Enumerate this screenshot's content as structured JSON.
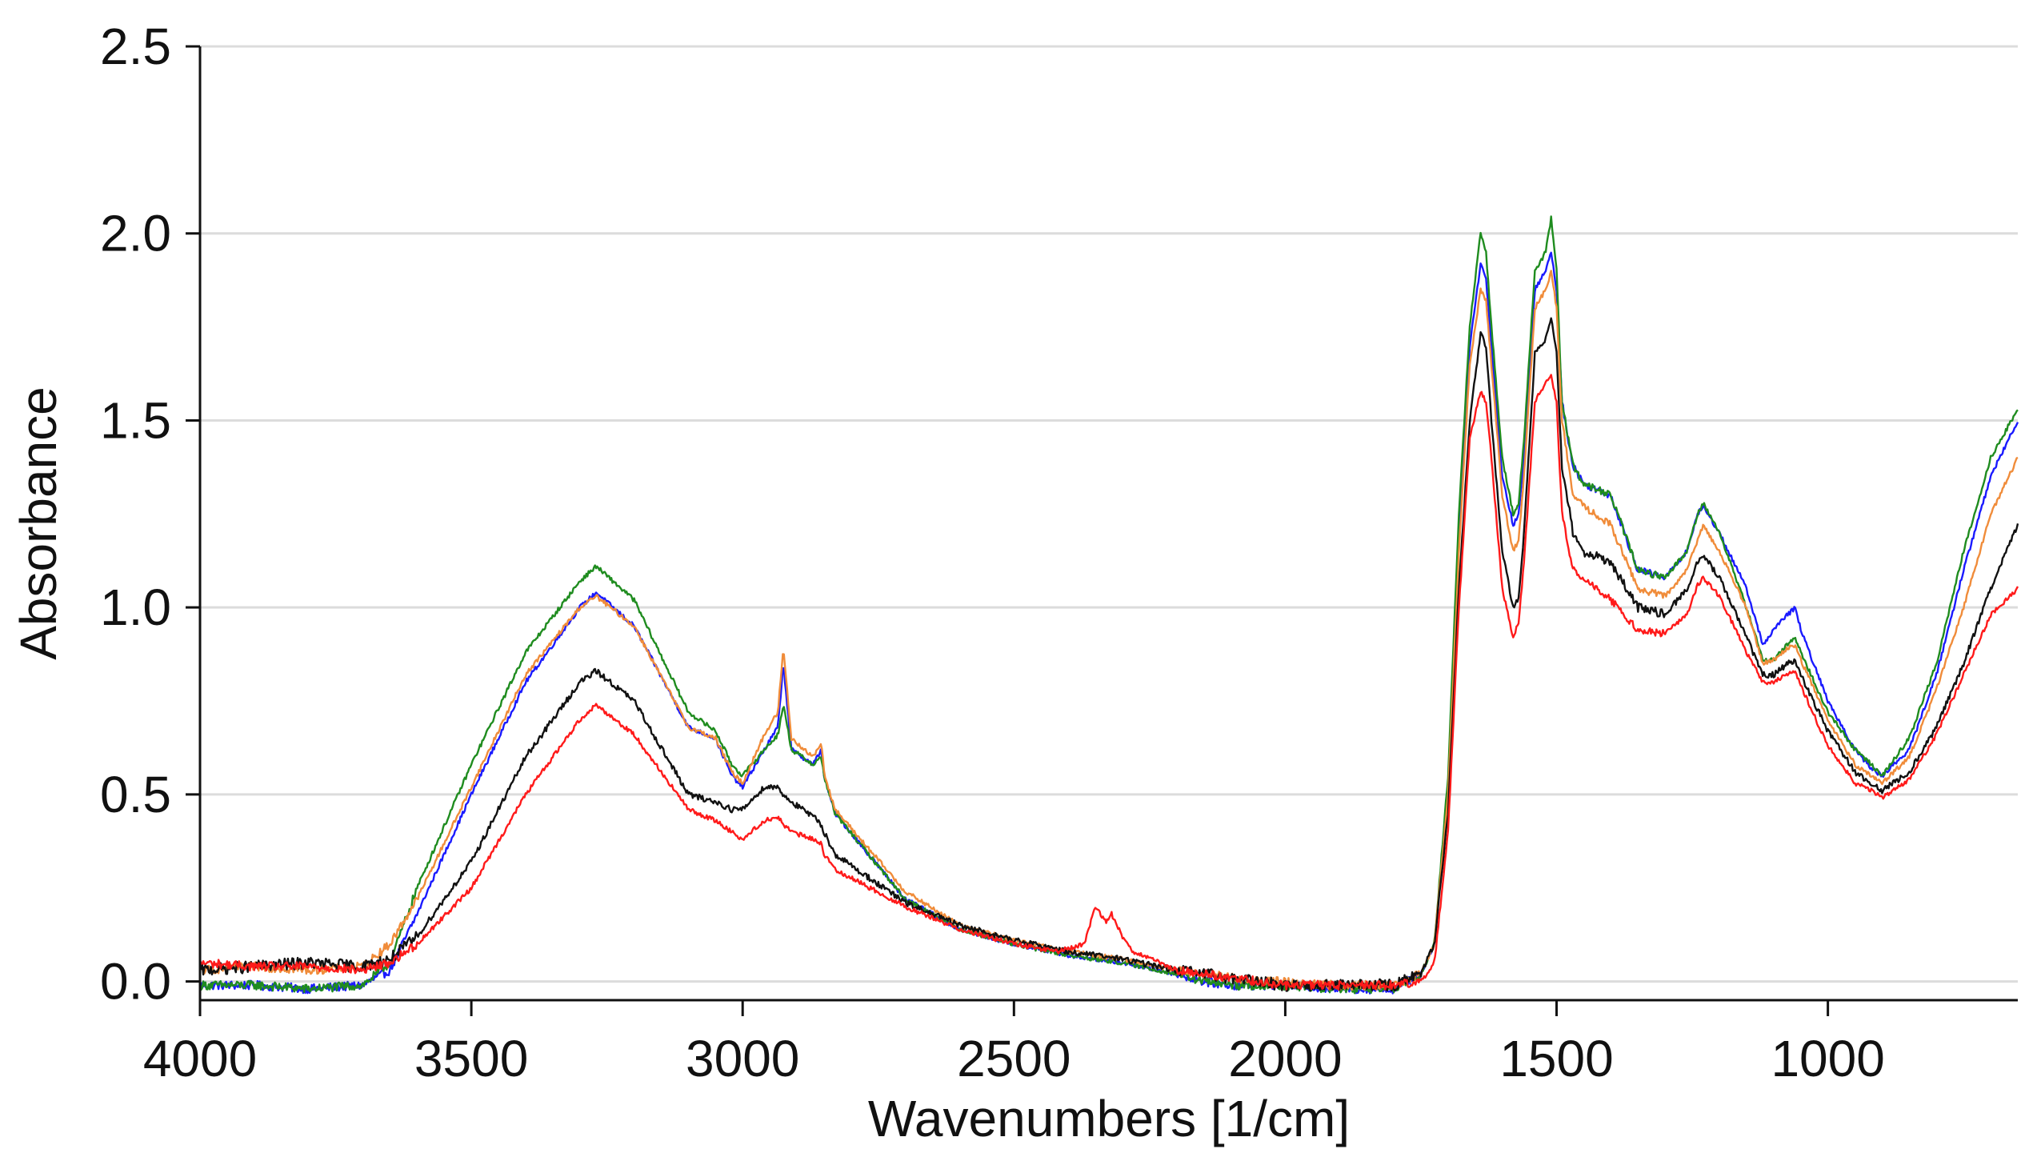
{
  "chart_data": {
    "type": "line",
    "title": "",
    "xlabel": "Wavenumbers [1/cm]",
    "ylabel": "Absorbance",
    "xlim": [
      4000,
      650
    ],
    "ylim": [
      -0.05,
      2.5
    ],
    "x_reversed": true,
    "grid": {
      "horizontal": true,
      "vertical": false
    },
    "legend": "none",
    "x_ticks": [
      {
        "value": 4000,
        "label": "4000"
      },
      {
        "value": 3500,
        "label": "3500"
      },
      {
        "value": 3000,
        "label": "3000"
      },
      {
        "value": 2500,
        "label": "2500"
      },
      {
        "value": 2000,
        "label": "2000"
      },
      {
        "value": 1500,
        "label": "1500"
      },
      {
        "value": 1000,
        "label": "1000"
      }
    ],
    "y_ticks": [
      {
        "value": 0.0,
        "label": "0.0"
      },
      {
        "value": 0.5,
        "label": "0.5"
      },
      {
        "value": 1.0,
        "label": "1.0"
      },
      {
        "value": 1.5,
        "label": "1.5"
      },
      {
        "value": 2.0,
        "label": "2.0"
      },
      {
        "value": 2.5,
        "label": "2.5"
      }
    ],
    "series": [
      {
        "color": "#1a1aff",
        "noise": 0.012,
        "x": [
          4000,
          3900,
          3800,
          3700,
          3650,
          3600,
          3500,
          3400,
          3300,
          3270,
          3200,
          3100,
          3050,
          3020,
          3000,
          2960,
          2935,
          2925,
          2910,
          2870,
          2855,
          2850,
          2830,
          2700,
          2600,
          2500,
          2400,
          2300,
          2200,
          2150,
          2100,
          2050,
          2000,
          1900,
          1800,
          1750,
          1725,
          1700,
          1680,
          1660,
          1640,
          1630,
          1620,
          1600,
          1580,
          1570,
          1560,
          1540,
          1520,
          1510,
          1500,
          1490,
          1470,
          1450,
          1400,
          1350,
          1300,
          1260,
          1240,
          1230,
          1200,
          1150,
          1120,
          1100,
          1075,
          1060,
          1050,
          1000,
          950,
          920,
          900,
          850,
          800,
          750,
          700,
          650
        ],
        "y": [
          -0.01,
          -0.01,
          -0.02,
          -0.01,
          0.03,
          0.18,
          0.5,
          0.8,
          1.0,
          1.04,
          0.95,
          0.68,
          0.65,
          0.55,
          0.52,
          0.62,
          0.68,
          0.85,
          0.62,
          0.58,
          0.62,
          0.55,
          0.45,
          0.22,
          0.14,
          0.1,
          0.07,
          0.05,
          0.02,
          0.0,
          -0.01,
          -0.01,
          -0.01,
          -0.02,
          -0.02,
          0.02,
          0.1,
          0.5,
          1.2,
          1.7,
          1.92,
          1.88,
          1.7,
          1.35,
          1.22,
          1.25,
          1.4,
          1.85,
          1.9,
          1.95,
          1.85,
          1.55,
          1.38,
          1.33,
          1.3,
          1.1,
          1.08,
          1.15,
          1.25,
          1.27,
          1.2,
          1.05,
          0.9,
          0.94,
          0.98,
          1.0,
          0.94,
          0.75,
          0.62,
          0.57,
          0.55,
          0.62,
          0.82,
          1.1,
          1.35,
          1.5
        ]
      },
      {
        "color": "#1f8c1f",
        "noise": 0.012,
        "x": [
          4000,
          3900,
          3800,
          3700,
          3650,
          3600,
          3500,
          3400,
          3300,
          3270,
          3200,
          3100,
          3050,
          3020,
          3000,
          2960,
          2935,
          2925,
          2910,
          2870,
          2855,
          2850,
          2830,
          2700,
          2600,
          2500,
          2400,
          2300,
          2200,
          2150,
          2100,
          2050,
          2000,
          1900,
          1800,
          1750,
          1725,
          1700,
          1680,
          1660,
          1640,
          1630,
          1620,
          1600,
          1580,
          1570,
          1560,
          1540,
          1520,
          1510,
          1500,
          1490,
          1470,
          1450,
          1400,
          1350,
          1300,
          1260,
          1240,
          1230,
          1200,
          1150,
          1120,
          1100,
          1075,
          1060,
          1050,
          1000,
          950,
          920,
          900,
          850,
          800,
          750,
          700,
          650
        ],
        "y": [
          -0.01,
          -0.01,
          -0.02,
          -0.01,
          0.05,
          0.25,
          0.58,
          0.88,
          1.07,
          1.11,
          1.02,
          0.72,
          0.67,
          0.58,
          0.55,
          0.62,
          0.66,
          0.74,
          0.62,
          0.58,
          0.6,
          0.55,
          0.45,
          0.22,
          0.14,
          0.1,
          0.07,
          0.05,
          0.02,
          0.0,
          -0.01,
          -0.01,
          -0.01,
          -0.02,
          -0.02,
          0.02,
          0.1,
          0.55,
          1.25,
          1.75,
          2.0,
          1.95,
          1.75,
          1.4,
          1.25,
          1.28,
          1.45,
          1.9,
          1.95,
          2.04,
          1.9,
          1.55,
          1.38,
          1.33,
          1.3,
          1.1,
          1.08,
          1.15,
          1.25,
          1.28,
          1.2,
          1.0,
          0.86,
          0.86,
          0.9,
          0.92,
          0.88,
          0.72,
          0.62,
          0.58,
          0.55,
          0.65,
          0.85,
          1.15,
          1.4,
          1.53
        ]
      },
      {
        "color": "#f08c3a",
        "noise": 0.012,
        "x": [
          4000,
          3900,
          3800,
          3700,
          3650,
          3600,
          3500,
          3400,
          3300,
          3270,
          3200,
          3100,
          3050,
          3020,
          3000,
          2960,
          2935,
          2925,
          2910,
          2870,
          2855,
          2850,
          2830,
          2700,
          2600,
          2500,
          2400,
          2300,
          2200,
          2150,
          2100,
          2050,
          2000,
          1900,
          1800,
          1750,
          1725,
          1700,
          1680,
          1660,
          1640,
          1630,
          1620,
          1600,
          1580,
          1570,
          1560,
          1540,
          1520,
          1510,
          1500,
          1490,
          1470,
          1450,
          1400,
          1350,
          1300,
          1260,
          1240,
          1230,
          1200,
          1150,
          1120,
          1100,
          1075,
          1060,
          1050,
          1000,
          950,
          920,
          900,
          850,
          800,
          750,
          700,
          650
        ],
        "y": [
          0.03,
          0.04,
          0.03,
          0.04,
          0.1,
          0.22,
          0.52,
          0.82,
          1.0,
          1.03,
          0.95,
          0.68,
          0.65,
          0.56,
          0.53,
          0.66,
          0.72,
          0.89,
          0.65,
          0.6,
          0.64,
          0.56,
          0.46,
          0.24,
          0.15,
          0.11,
          0.08,
          0.06,
          0.03,
          0.02,
          0.01,
          0.0,
          0.0,
          -0.01,
          -0.01,
          0.02,
          0.1,
          0.5,
          1.15,
          1.65,
          1.85,
          1.82,
          1.65,
          1.3,
          1.15,
          1.18,
          1.35,
          1.8,
          1.85,
          1.9,
          1.8,
          1.5,
          1.3,
          1.27,
          1.22,
          1.05,
          1.03,
          1.1,
          1.18,
          1.22,
          1.15,
          1.0,
          0.85,
          0.86,
          0.89,
          0.9,
          0.86,
          0.7,
          0.58,
          0.55,
          0.53,
          0.6,
          0.78,
          1.0,
          1.25,
          1.4
        ]
      },
      {
        "color": "#111111",
        "noise": 0.016,
        "x": [
          4000,
          3900,
          3800,
          3700,
          3650,
          3600,
          3500,
          3400,
          3300,
          3270,
          3200,
          3100,
          3050,
          3020,
          3000,
          2960,
          2935,
          2925,
          2910,
          2870,
          2855,
          2850,
          2830,
          2700,
          2600,
          2500,
          2400,
          2300,
          2200,
          2150,
          2100,
          2050,
          2000,
          1900,
          1800,
          1750,
          1725,
          1700,
          1680,
          1660,
          1640,
          1630,
          1620,
          1600,
          1580,
          1570,
          1560,
          1540,
          1520,
          1510,
          1500,
          1490,
          1470,
          1450,
          1400,
          1350,
          1300,
          1260,
          1240,
          1230,
          1200,
          1150,
          1120,
          1100,
          1075,
          1060,
          1050,
          1000,
          950,
          920,
          900,
          850,
          800,
          750,
          700,
          650
        ],
        "y": [
          0.03,
          0.04,
          0.05,
          0.04,
          0.06,
          0.12,
          0.32,
          0.6,
          0.8,
          0.83,
          0.75,
          0.5,
          0.48,
          0.46,
          0.46,
          0.52,
          0.52,
          0.5,
          0.48,
          0.44,
          0.42,
          0.4,
          0.34,
          0.21,
          0.15,
          0.11,
          0.08,
          0.06,
          0.03,
          0.02,
          0.01,
          0.0,
          -0.01,
          -0.01,
          -0.01,
          0.02,
          0.1,
          0.45,
          1.05,
          1.5,
          1.73,
          1.7,
          1.5,
          1.15,
          1.0,
          1.02,
          1.2,
          1.68,
          1.72,
          1.78,
          1.68,
          1.38,
          1.2,
          1.15,
          1.12,
          1.0,
          0.98,
          1.05,
          1.12,
          1.14,
          1.08,
          0.92,
          0.82,
          0.82,
          0.85,
          0.86,
          0.82,
          0.67,
          0.56,
          0.53,
          0.51,
          0.56,
          0.68,
          0.85,
          1.05,
          1.22
        ]
      },
      {
        "color": "#ff1a1a",
        "noise": 0.012,
        "x": [
          4000,
          3900,
          3800,
          3700,
          3650,
          3600,
          3500,
          3400,
          3300,
          3270,
          3200,
          3100,
          3050,
          3020,
          3000,
          2960,
          2935,
          2925,
          2910,
          2870,
          2855,
          2850,
          2830,
          2700,
          2600,
          2500,
          2420,
          2370,
          2350,
          2330,
          2320,
          2300,
          2280,
          2200,
          2150,
          2100,
          2050,
          2000,
          1900,
          1800,
          1750,
          1725,
          1700,
          1680,
          1660,
          1640,
          1630,
          1620,
          1600,
          1580,
          1570,
          1560,
          1540,
          1520,
          1510,
          1500,
          1490,
          1470,
          1450,
          1400,
          1350,
          1300,
          1260,
          1240,
          1230,
          1200,
          1150,
          1120,
          1100,
          1075,
          1060,
          1050,
          1000,
          950,
          920,
          900,
          850,
          800,
          750,
          700,
          650
        ],
        "y": [
          0.05,
          0.04,
          0.04,
          0.03,
          0.05,
          0.1,
          0.25,
          0.5,
          0.7,
          0.74,
          0.66,
          0.46,
          0.43,
          0.4,
          0.38,
          0.43,
          0.44,
          0.42,
          0.4,
          0.38,
          0.37,
          0.34,
          0.3,
          0.2,
          0.14,
          0.1,
          0.08,
          0.1,
          0.2,
          0.16,
          0.18,
          0.12,
          0.08,
          0.03,
          0.02,
          0.01,
          0.0,
          -0.01,
          -0.01,
          -0.01,
          0.0,
          0.05,
          0.4,
          1.0,
          1.45,
          1.58,
          1.55,
          1.4,
          1.05,
          0.92,
          0.96,
          1.12,
          1.55,
          1.6,
          1.62,
          1.55,
          1.25,
          1.1,
          1.08,
          1.02,
          0.94,
          0.93,
          0.98,
          1.06,
          1.08,
          1.03,
          0.88,
          0.8,
          0.8,
          0.82,
          0.83,
          0.79,
          0.63,
          0.53,
          0.51,
          0.49,
          0.54,
          0.66,
          0.82,
          0.98,
          1.05
        ]
      }
    ]
  }
}
